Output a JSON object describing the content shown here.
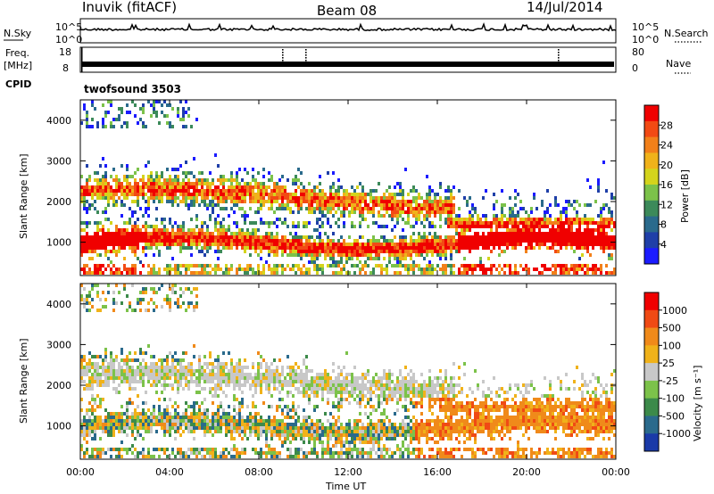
{
  "header": {
    "station": "Inuvik (fitACF)",
    "beam": "Beam 08",
    "date": "14/Jul/2014"
  },
  "noise_panel": {
    "left_label": "N.Sky",
    "left_ticks": [
      "10^5",
      "10^0"
    ],
    "right_ticks": [
      "10^5",
      "10^0"
    ],
    "right_label": "N.Search"
  },
  "freq_panel": {
    "left_label_1": "Freq.",
    "left_label_2": "[MHz]",
    "left_ticks": [
      "18",
      "8"
    ],
    "right_ticks": [
      "80",
      "0"
    ],
    "right_label": "Nave"
  },
  "cpid_panel": {
    "label": "CPID",
    "program": "twofsound 3503"
  },
  "colors": {
    "power_scale": [
      "#1b1bff",
      "#1f3fa8",
      "#2a6a8c",
      "#3c8a5a",
      "#7cc24a",
      "#d4d41c",
      "#f0b21a",
      "#f2801a",
      "#f24a14",
      "#f00000"
    ],
    "velocity_scale": [
      "#1a3aa8",
      "#2a6a8c",
      "#3c8a4a",
      "#7cc24a",
      "#c8c8c8",
      "#f0b21a",
      "#f08a1a",
      "#f04a14",
      "#f00000"
    ]
  },
  "chart_data": [
    {
      "type": "heatmap",
      "name": "power",
      "xlabel": "",
      "ylabel": "Slant Range [km]",
      "x_ticks": [
        "00:00",
        "04:00",
        "08:00",
        "12:00",
        "16:00",
        "20:00",
        "00:00"
      ],
      "y_ticks": [
        "1000",
        "2000",
        "3000",
        "4000"
      ],
      "ylim": [
        180,
        4500
      ],
      "colorbar_label": "Power [dB]",
      "colorbar_ticks": [
        "4",
        "8",
        "12",
        "16",
        "20",
        "24",
        "28"
      ],
      "colorbar_range": [
        0,
        32
      ]
    },
    {
      "type": "heatmap",
      "name": "velocity",
      "xlabel": "Time UT",
      "ylabel": "Slant Range [km]",
      "x_ticks": [
        "00:00",
        "04:00",
        "08:00",
        "12:00",
        "16:00",
        "20:00",
        "00:00"
      ],
      "y_ticks": [
        "1000",
        "2000",
        "3000",
        "4000"
      ],
      "ylim": [
        180,
        4500
      ],
      "colorbar_label": "Velocity [m s⁻¹]",
      "colorbar_ticks": [
        "1000",
        "500",
        "100",
        "25",
        "-25",
        "-100",
        "-500",
        "-1000"
      ]
    }
  ]
}
